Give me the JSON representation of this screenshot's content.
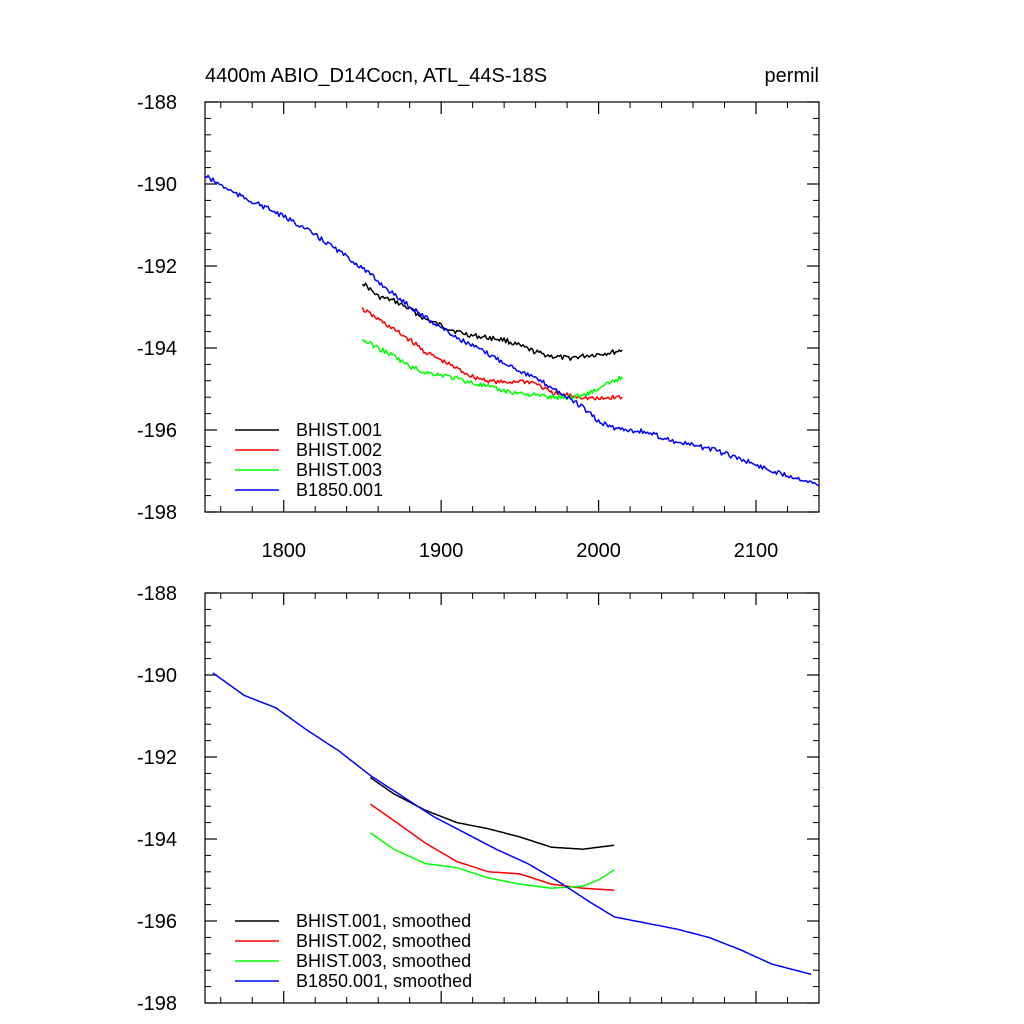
{
  "chart_data": [
    {
      "type": "line",
      "title": "4400m ABIO_D14Cocn, ATL_44S-18S",
      "units_label": "permil",
      "xlim": [
        1750,
        2140
      ],
      "ylim": [
        -198,
        -188
      ],
      "x_ticks": [
        1800,
        1900,
        2000,
        2100
      ],
      "x_tick_labels": [
        "1800",
        "1900",
        "2000",
        "2100"
      ],
      "y_ticks": [
        -188,
        -190,
        -192,
        -194,
        -196,
        -198
      ],
      "y_tick_labels": [
        "-188",
        "-190",
        "-192",
        "-194",
        "-196",
        "-198"
      ],
      "grid": false,
      "legend_position": "bottom-left",
      "noise": 0.06,
      "series": [
        {
          "name": "BHIST.001",
          "color": "#000000",
          "points": [
            [
              1850,
              192.4
            ],
            [
              1860,
              192.75
            ],
            [
              1870,
              192.85
            ],
            [
              1880,
              193.05
            ],
            [
              1890,
              193.3
            ],
            [
              1900,
              193.45
            ],
            [
              1910,
              193.6
            ],
            [
              1920,
              193.7
            ],
            [
              1930,
              193.75
            ],
            [
              1940,
              193.8
            ],
            [
              1950,
              193.95
            ],
            [
              1960,
              194.1
            ],
            [
              1970,
              194.2
            ],
            [
              1980,
              194.25
            ],
            [
              1990,
              194.2
            ],
            [
              2000,
              194.15
            ],
            [
              2010,
              194.1
            ],
            [
              2015,
              194.05
            ]
          ]
        },
        {
          "name": "BHIST.002",
          "color": "#ff0000",
          "points": [
            [
              1850,
              193.05
            ],
            [
              1860,
              193.3
            ],
            [
              1870,
              193.55
            ],
            [
              1880,
              193.8
            ],
            [
              1890,
              194.1
            ],
            [
              1900,
              194.3
            ],
            [
              1910,
              194.5
            ],
            [
              1920,
              194.7
            ],
            [
              1930,
              194.8
            ],
            [
              1940,
              194.85
            ],
            [
              1950,
              194.8
            ],
            [
              1960,
              194.85
            ],
            [
              1970,
              195.1
            ],
            [
              1980,
              195.15
            ],
            [
              1990,
              195.2
            ],
            [
              2000,
              195.25
            ],
            [
              2010,
              195.2
            ],
            [
              2015,
              195.2
            ]
          ]
        },
        {
          "name": "BHIST.003",
          "color": "#00ff00",
          "points": [
            [
              1850,
              193.8
            ],
            [
              1860,
              194.0
            ],
            [
              1870,
              194.2
            ],
            [
              1880,
              194.45
            ],
            [
              1890,
              194.6
            ],
            [
              1900,
              194.65
            ],
            [
              1910,
              194.75
            ],
            [
              1920,
              194.85
            ],
            [
              1930,
              194.95
            ],
            [
              1940,
              195.05
            ],
            [
              1950,
              195.1
            ],
            [
              1960,
              195.15
            ],
            [
              1970,
              195.2
            ],
            [
              1980,
              195.2
            ],
            [
              1990,
              195.15
            ],
            [
              2000,
              195.0
            ],
            [
              2010,
              194.8
            ],
            [
              2015,
              194.7
            ]
          ]
        },
        {
          "name": "B1850.001",
          "color": "#0000ff",
          "points": [
            [
              1750,
              189.8
            ],
            [
              1770,
              190.25
            ],
            [
              1790,
              190.6
            ],
            [
              1810,
              191.0
            ],
            [
              1830,
              191.5
            ],
            [
              1850,
              192.05
            ],
            [
              1870,
              192.7
            ],
            [
              1890,
              193.25
            ],
            [
              1910,
              193.75
            ],
            [
              1930,
              194.15
            ],
            [
              1950,
              194.55
            ],
            [
              1970,
              194.95
            ],
            [
              1990,
              195.45
            ],
            [
              2000,
              195.8
            ],
            [
              2010,
              195.95
            ],
            [
              2030,
              196.05
            ],
            [
              2050,
              196.3
            ],
            [
              2070,
              196.45
            ],
            [
              2090,
              196.7
            ],
            [
              2110,
              197.0
            ],
            [
              2130,
              197.2
            ],
            [
              2140,
              197.35
            ]
          ]
        }
      ]
    },
    {
      "type": "line",
      "xlim": [
        1750,
        2140
      ],
      "ylim": [
        -198,
        -188
      ],
      "x_ticks": [
        1800,
        1900,
        2000,
        2100
      ],
      "y_ticks": [
        -188,
        -190,
        -192,
        -194,
        -196,
        -198
      ],
      "y_tick_labels": [
        "-188",
        "-190",
        "-192",
        "-194",
        "-196",
        "-198"
      ],
      "grid": false,
      "legend_position": "bottom-left",
      "noise": 0.0,
      "series": [
        {
          "name": "BHIST.001, smoothed",
          "color": "#000000",
          "points": [
            [
              1855,
              192.5
            ],
            [
              1870,
              192.9
            ],
            [
              1890,
              193.3
            ],
            [
              1910,
              193.6
            ],
            [
              1930,
              193.75
            ],
            [
              1950,
              193.95
            ],
            [
              1970,
              194.2
            ],
            [
              1990,
              194.25
            ],
            [
              2010,
              194.15
            ]
          ]
        },
        {
          "name": "BHIST.002, smoothed",
          "color": "#ff0000",
          "points": [
            [
              1855,
              193.15
            ],
            [
              1870,
              193.55
            ],
            [
              1890,
              194.1
            ],
            [
              1910,
              194.55
            ],
            [
              1930,
              194.8
            ],
            [
              1950,
              194.85
            ],
            [
              1970,
              195.1
            ],
            [
              1990,
              195.2
            ],
            [
              2010,
              195.25
            ]
          ]
        },
        {
          "name": "BHIST.003, smoothed",
          "color": "#00ff00",
          "points": [
            [
              1855,
              193.85
            ],
            [
              1870,
              194.25
            ],
            [
              1890,
              194.6
            ],
            [
              1910,
              194.7
            ],
            [
              1930,
              194.95
            ],
            [
              1950,
              195.1
            ],
            [
              1970,
              195.2
            ],
            [
              1990,
              195.15
            ],
            [
              2000,
              195.0
            ],
            [
              2010,
              194.75
            ]
          ]
        },
        {
          "name": "B1850.001, smoothed",
          "color": "#0000ff",
          "points": [
            [
              1755,
              189.95
            ],
            [
              1775,
              190.5
            ],
            [
              1795,
              190.8
            ],
            [
              1815,
              191.35
            ],
            [
              1835,
              191.85
            ],
            [
              1855,
              192.45
            ],
            [
              1875,
              192.95
            ],
            [
              1895,
              193.45
            ],
            [
              1915,
              193.85
            ],
            [
              1935,
              194.25
            ],
            [
              1955,
              194.6
            ],
            [
              1975,
              195.05
            ],
            [
              1995,
              195.55
            ],
            [
              2010,
              195.9
            ],
            [
              2030,
              196.05
            ],
            [
              2050,
              196.2
            ],
            [
              2070,
              196.4
            ],
            [
              2090,
              196.7
            ],
            [
              2110,
              197.05
            ],
            [
              2130,
              197.25
            ],
            [
              2135,
              197.3
            ]
          ]
        }
      ]
    }
  ]
}
